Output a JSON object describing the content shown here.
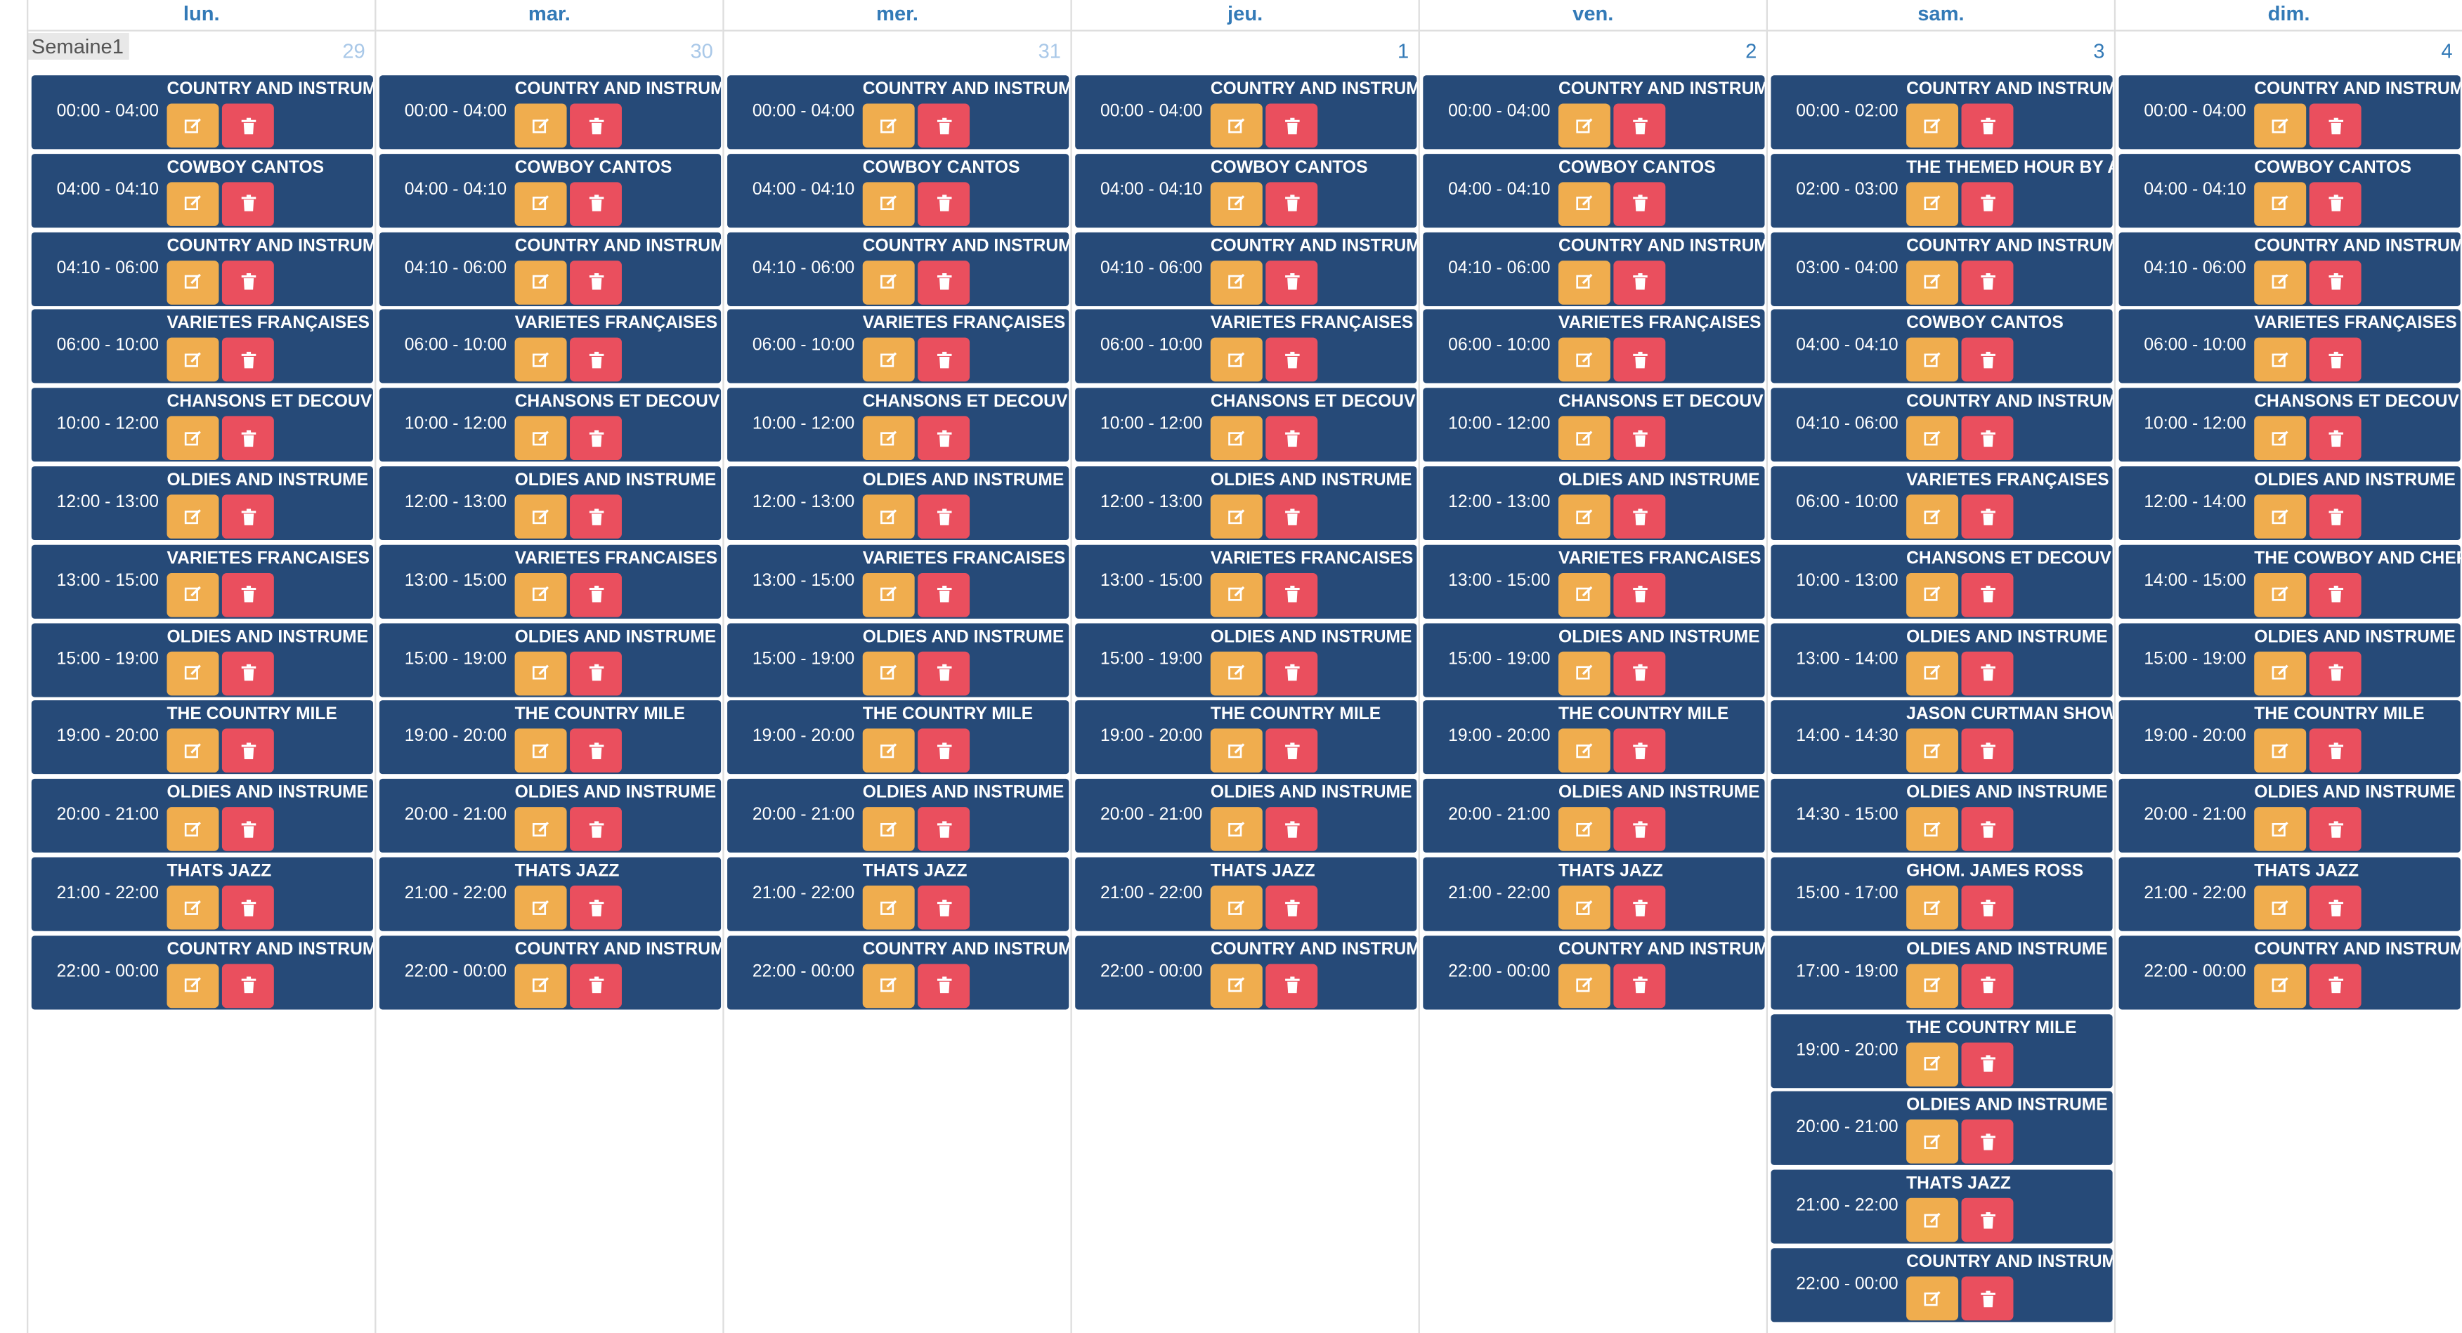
{
  "week_label": "Semaine1",
  "columns": [
    {
      "day": "lun.",
      "date": "29",
      "events": [
        [
          "00:00 - 04:00",
          "COUNTRY AND INSTRUM"
        ],
        [
          "04:00 - 04:10",
          "COWBOY CANTOS"
        ],
        [
          "04:10 - 06:00",
          "COUNTRY AND INSTRUM"
        ],
        [
          "06:00 - 10:00",
          "VARIETES FRANÇAISES"
        ],
        [
          "10:00 - 12:00",
          "CHANSONS ET DECOUV"
        ],
        [
          "12:00 - 13:00",
          "OLDIES AND INSTRUME"
        ],
        [
          "13:00 - 15:00",
          "VARIETES FRANCAISES"
        ],
        [
          "15:00 - 19:00",
          "OLDIES AND INSTRUME"
        ],
        [
          "19:00 - 20:00",
          "THE COUNTRY MILE"
        ],
        [
          "20:00 - 21:00",
          "OLDIES AND INSTRUME"
        ],
        [
          "21:00 - 22:00",
          "THATS JAZZ"
        ],
        [
          "22:00 - 00:00",
          "COUNTRY AND INSTRUM"
        ]
      ]
    },
    {
      "day": "mar.",
      "date": "30",
      "events": [
        [
          "00:00 - 04:00",
          "COUNTRY AND INSTRUM"
        ],
        [
          "04:00 - 04:10",
          "COWBOY CANTOS"
        ],
        [
          "04:10 - 06:00",
          "COUNTRY AND INSTRUM"
        ],
        [
          "06:00 - 10:00",
          "VARIETES FRANÇAISES"
        ],
        [
          "10:00 - 12:00",
          "CHANSONS ET DECOUV"
        ],
        [
          "12:00 - 13:00",
          "OLDIES AND INSTRUME"
        ],
        [
          "13:00 - 15:00",
          "VARIETES FRANCAISES"
        ],
        [
          "15:00 - 19:00",
          "OLDIES AND INSTRUME"
        ],
        [
          "19:00 - 20:00",
          "THE COUNTRY MILE"
        ],
        [
          "20:00 - 21:00",
          "OLDIES AND INSTRUME"
        ],
        [
          "21:00 - 22:00",
          "THATS JAZZ"
        ],
        [
          "22:00 - 00:00",
          "COUNTRY AND INSTRUM"
        ]
      ]
    },
    {
      "day": "mer.",
      "date": "31",
      "events": [
        [
          "00:00 - 04:00",
          "COUNTRY AND INSTRUM"
        ],
        [
          "04:00 - 04:10",
          "COWBOY CANTOS"
        ],
        [
          "04:10 - 06:00",
          "COUNTRY AND INSTRUM"
        ],
        [
          "06:00 - 10:00",
          "VARIETES FRANÇAISES"
        ],
        [
          "10:00 - 12:00",
          "CHANSONS ET DECOUV"
        ],
        [
          "12:00 - 13:00",
          "OLDIES AND INSTRUME"
        ],
        [
          "13:00 - 15:00",
          "VARIETES FRANCAISES"
        ],
        [
          "15:00 - 19:00",
          "OLDIES AND INSTRUME"
        ],
        [
          "19:00 - 20:00",
          "THE COUNTRY MILE"
        ],
        [
          "20:00 - 21:00",
          "OLDIES AND INSTRUME"
        ],
        [
          "21:00 - 22:00",
          "THATS JAZZ"
        ],
        [
          "22:00 - 00:00",
          "COUNTRY AND INSTRUM"
        ]
      ]
    },
    {
      "day": "jeu.",
      "date": "1",
      "events": [
        [
          "00:00 - 04:00",
          "COUNTRY AND INSTRUM"
        ],
        [
          "04:00 - 04:10",
          "COWBOY CANTOS"
        ],
        [
          "04:10 - 06:00",
          "COUNTRY AND INSTRUM"
        ],
        [
          "06:00 - 10:00",
          "VARIETES FRANÇAISES"
        ],
        [
          "10:00 - 12:00",
          "CHANSONS ET DECOUV"
        ],
        [
          "12:00 - 13:00",
          "OLDIES AND INSTRUME"
        ],
        [
          "13:00 - 15:00",
          "VARIETES FRANCAISES"
        ],
        [
          "15:00 - 19:00",
          "OLDIES AND INSTRUME"
        ],
        [
          "19:00 - 20:00",
          "THE COUNTRY MILE"
        ],
        [
          "20:00 - 21:00",
          "OLDIES AND INSTRUME"
        ],
        [
          "21:00 - 22:00",
          "THATS JAZZ"
        ],
        [
          "22:00 - 00:00",
          "COUNTRY AND INSTRUM"
        ]
      ]
    },
    {
      "day": "ven.",
      "date": "2",
      "events": [
        [
          "00:00 - 04:00",
          "COUNTRY AND INSTRUM"
        ],
        [
          "04:00 - 04:10",
          "COWBOY CANTOS"
        ],
        [
          "04:10 - 06:00",
          "COUNTRY AND INSTRUM"
        ],
        [
          "06:00 - 10:00",
          "VARIETES FRANÇAISES"
        ],
        [
          "10:00 - 12:00",
          "CHANSONS ET DECOUV"
        ],
        [
          "12:00 - 13:00",
          "OLDIES AND INSTRUME"
        ],
        [
          "13:00 - 15:00",
          "VARIETES FRANCAISES"
        ],
        [
          "15:00 - 19:00",
          "OLDIES AND INSTRUME"
        ],
        [
          "19:00 - 20:00",
          "THE COUNTRY MILE"
        ],
        [
          "20:00 - 21:00",
          "OLDIES AND INSTRUME"
        ],
        [
          "21:00 - 22:00",
          "THATS JAZZ"
        ],
        [
          "22:00 - 00:00",
          "COUNTRY AND INSTRUM"
        ]
      ]
    },
    {
      "day": "sam.",
      "date": "3",
      "events": [
        [
          "00:00 - 02:00",
          "COUNTRY AND INSTRUM"
        ],
        [
          "02:00 - 03:00",
          "THE THEMED HOUR BY A"
        ],
        [
          "03:00 - 04:00",
          "COUNTRY AND INSTRUM"
        ],
        [
          "04:00 - 04:10",
          "COWBOY CANTOS"
        ],
        [
          "04:10 - 06:00",
          "COUNTRY AND INSTRUM"
        ],
        [
          "06:00 - 10:00",
          "VARIETES FRANÇAISES"
        ],
        [
          "10:00 - 13:00",
          "CHANSONS ET DECOUV"
        ],
        [
          "13:00 - 14:00",
          "OLDIES AND INSTRUME"
        ],
        [
          "14:00 - 14:30",
          "JASON CURTMAN SHOW"
        ],
        [
          "14:30 - 15:00",
          "OLDIES AND INSTRUME"
        ],
        [
          "15:00 - 17:00",
          "GHOM. JAMES ROSS"
        ],
        [
          "17:00 - 19:00",
          "OLDIES AND INSTRUME"
        ],
        [
          "19:00 - 20:00",
          "THE COUNTRY MILE"
        ],
        [
          "20:00 - 21:00",
          "OLDIES AND INSTRUME"
        ],
        [
          "21:00 - 22:00",
          "THATS JAZZ"
        ],
        [
          "22:00 - 00:00",
          "COUNTRY AND INSTRUM"
        ]
      ]
    },
    {
      "day": "dim.",
      "date": "4",
      "events": [
        [
          "00:00 - 04:00",
          "COUNTRY AND INSTRUM"
        ],
        [
          "04:00 - 04:10",
          "COWBOY CANTOS"
        ],
        [
          "04:10 - 06:00",
          "COUNTRY AND INSTRUM"
        ],
        [
          "06:00 - 10:00",
          "VARIETES FRANÇAISES"
        ],
        [
          "10:00 - 12:00",
          "CHANSONS ET DECOUV"
        ],
        [
          "12:00 - 14:00",
          "OLDIES AND INSTRUME"
        ],
        [
          "14:00 - 15:00",
          "THE COWBOY AND CHEF"
        ],
        [
          "15:00 - 19:00",
          "OLDIES AND INSTRUME"
        ],
        [
          "19:00 - 20:00",
          "THE COUNTRY MILE"
        ],
        [
          "20:00 - 21:00",
          "OLDIES AND INSTRUME"
        ],
        [
          "21:00 - 22:00",
          "THATS JAZZ"
        ],
        [
          "22:00 - 00:00",
          "COUNTRY AND INSTRUM"
        ]
      ]
    }
  ]
}
